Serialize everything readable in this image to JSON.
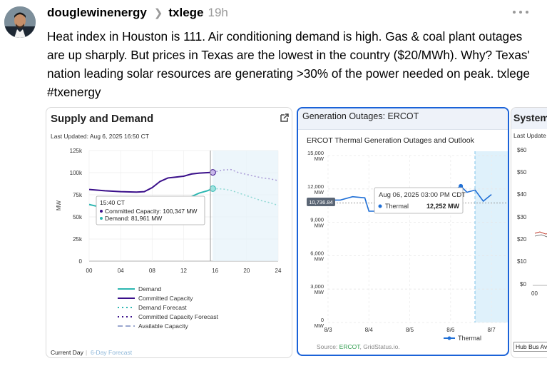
{
  "post": {
    "username": "douglewinenergy",
    "topic": "txlege",
    "time": "19h",
    "text": "Heat index in Houston is 111. Air conditioning demand is high. Gas & coal plant outages are up sharply. But prices in Texas are the lowest in the country ($20/MWh). Why? Texas' nation leading solar resources are generating >30% of the power needed on peak. txlege #txenergy"
  },
  "card1": {
    "title": "Supply and Demand",
    "updated": "Last Updated: Aug 6, 2025 16:50 CT",
    "footer_current": "Current Day",
    "footer_sep": "|",
    "footer_forecast": "6-Day Forecast",
    "tooltip": {
      "time": "15:40 CT",
      "committed": "Committed Capacity: 100,347 MW",
      "demand": "Demand: 81,961 MW"
    },
    "legend": [
      "Demand",
      "Committed Capacity",
      "Demand Forecast",
      "Committed Capacity Forecast",
      "Available Capacity"
    ],
    "colors": {
      "demand": "#2bb6b1",
      "committed": "#3a0f8a",
      "available": "#9aa7cf"
    }
  },
  "card2": {
    "title": "Generation Outages: ERCOT",
    "subtitle": "ERCOT Thermal Generation Outages and Outlook",
    "tooltip": {
      "time": "Aug 06, 2025 03:00 PM CDT",
      "series": "Thermal",
      "value": "12,252 MW"
    },
    "marker": "10,736.84",
    "legend": "Thermal",
    "source_prefix": "Source: ",
    "source_ercot": "ERCOT",
    "source_suffix": ", GridStatus.io.",
    "colors": {
      "thermal": "#1f6fd6",
      "forecast_band": "#dff1fb"
    }
  },
  "card3": {
    "title": "System",
    "updated": "Last Update",
    "footer": "Hub Bus Av"
  },
  "chart_data": [
    {
      "type": "line",
      "title": "Supply and Demand",
      "xlabel": "",
      "ylabel": "MW",
      "x_ticks": [
        "00",
        "04",
        "08",
        "12",
        "16",
        "20",
        "24"
      ],
      "y_ticks": [
        "0",
        "25k",
        "50k",
        "75k",
        "100k",
        "125k"
      ],
      "ylim": [
        0,
        125000
      ],
      "xlim": [
        0,
        24
      ],
      "series": [
        {
          "name": "Committed Capacity",
          "x": [
            0,
            2,
            4,
            6,
            7,
            8,
            9,
            10,
            11,
            12,
            13,
            14,
            15,
            15.7
          ],
          "y": [
            81000,
            79500,
            78500,
            78000,
            78500,
            83000,
            90000,
            94000,
            95000,
            96000,
            98500,
            99500,
            100000,
            100347
          ]
        },
        {
          "name": "Demand",
          "x": [
            0,
            1,
            1.5,
            2,
            3,
            11,
            12,
            13,
            14,
            15,
            15.7
          ],
          "y": [
            64000,
            62000,
            55000,
            54000,
            53000,
            53000,
            66000,
            73000,
            77000,
            79500,
            81961
          ]
        },
        {
          "name": "Committed Capacity Forecast",
          "x": [
            15.7,
            17,
            18,
            19,
            20,
            21,
            22,
            23,
            24
          ],
          "y": [
            100347,
            103000,
            103500,
            100000,
            98000,
            96000,
            94000,
            93000,
            91000
          ]
        },
        {
          "name": "Demand Forecast",
          "x": [
            15.7,
            17,
            18,
            19,
            20,
            21,
            22,
            23,
            24
          ],
          "y": [
            81961,
            81500,
            80000,
            77000,
            74000,
            71000,
            68000,
            66000,
            63000
          ]
        }
      ],
      "annotations": [
        "15:40 CT"
      ]
    },
    {
      "type": "line",
      "title": "ERCOT Thermal Generation Outages and Outlook",
      "xlabel": "",
      "ylabel": "MW",
      "x_ticks": [
        "8/3",
        "8/4",
        "8/5",
        "8/6",
        "8/7"
      ],
      "y_ticks": [
        "0",
        "3,000",
        "6,000",
        "9,000",
        "12,000",
        "15,000"
      ],
      "ylim": [
        0,
        15000
      ],
      "series": [
        {
          "name": "Thermal",
          "x": [
            0,
            0.3,
            0.6,
            0.9,
            1.0,
            1.3,
            1.5,
            1.6,
            1.8,
            2.0,
            2.3,
            2.6,
            2.8,
            3.0,
            3.25,
            3.4,
            3.6,
            3.8,
            4.0
          ],
          "y": [
            11000,
            11000,
            11300,
            11200,
            10000,
            10000,
            10500,
            11200,
            11000,
            11200,
            11100,
            11300,
            11600,
            11700,
            12252,
            11700,
            11900,
            10900,
            11500
          ]
        }
      ],
      "annotations": [
        "Aug 06, 2025 03:00 PM CDT",
        "10,736.84"
      ]
    }
  ]
}
